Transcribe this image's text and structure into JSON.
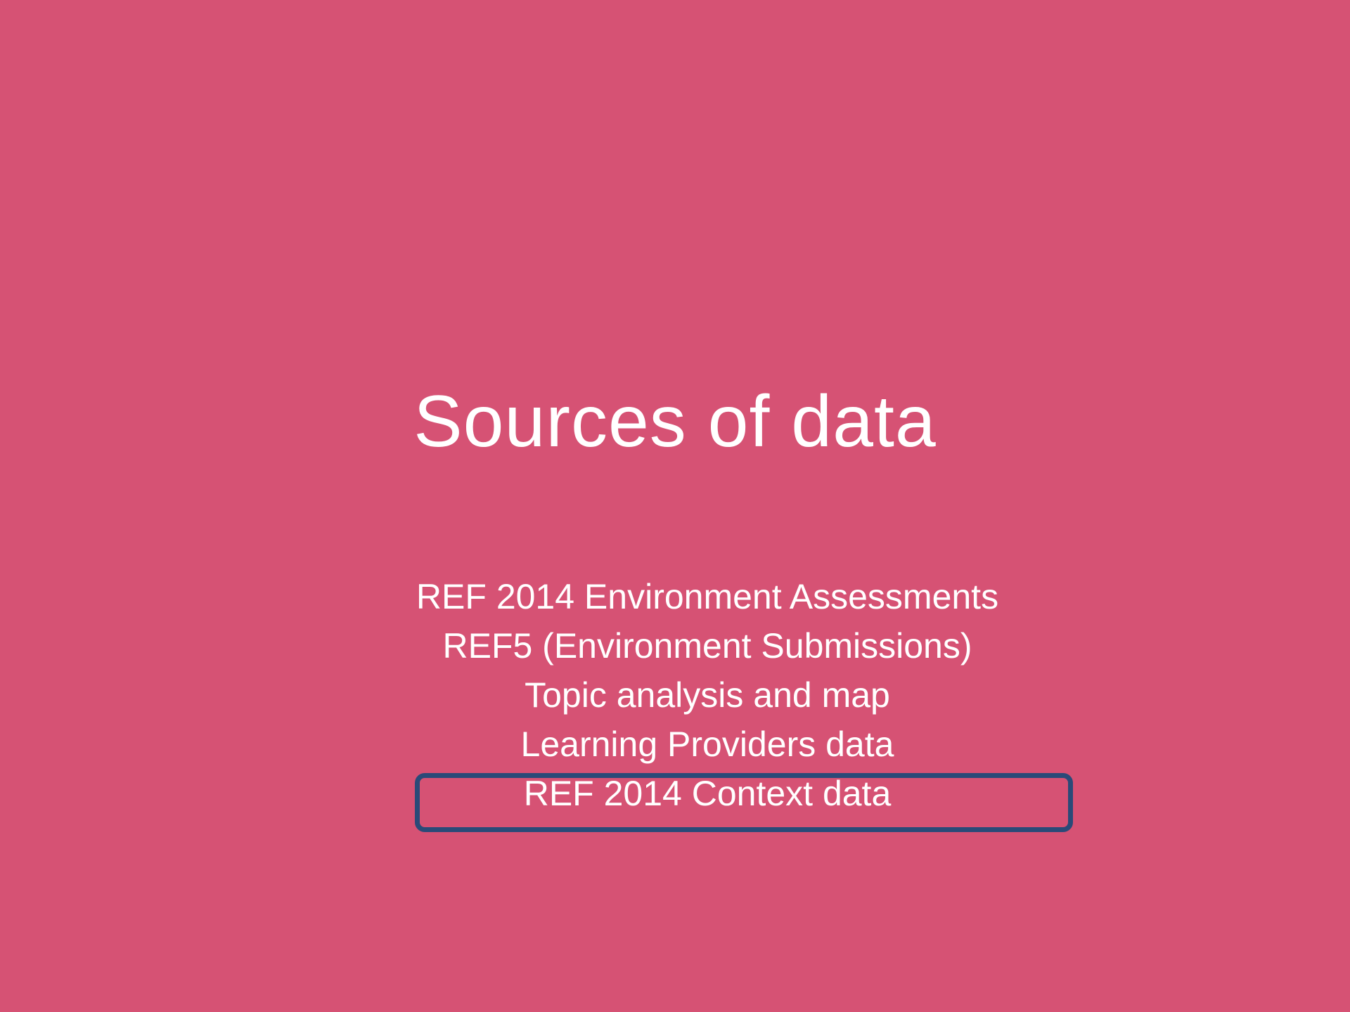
{
  "slide": {
    "title": "Sources of data",
    "items": [
      "REF 2014 Environment Assessments",
      "REF5 (Environment Submissions)",
      "Topic analysis and map",
      "Learning Providers data",
      "REF 2014 Context data"
    ],
    "highlighted_item": "REF 2014 Context data",
    "colors": {
      "background": "#d65274",
      "text": "#ffffff",
      "highlight_border": "#2a4a78"
    }
  }
}
